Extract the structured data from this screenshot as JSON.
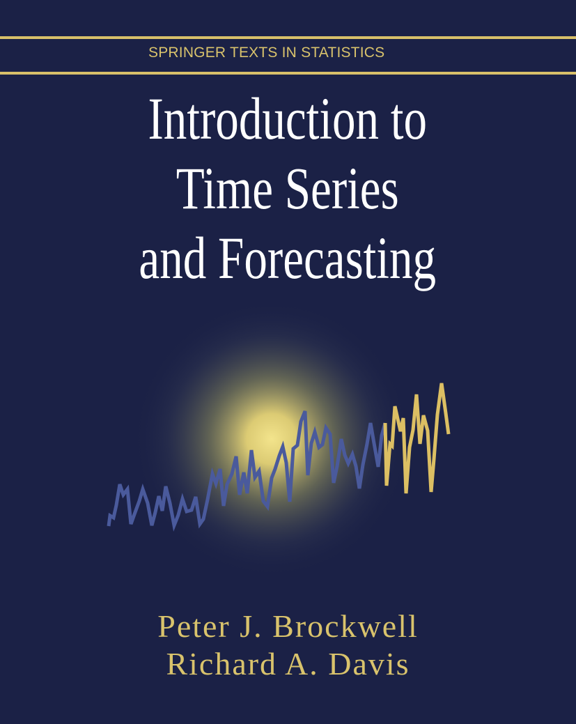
{
  "cover": {
    "series_name": "SPRINGER TEXTS IN STATISTICS",
    "title_lines": [
      "Introduction to",
      "Time Series",
      "and Forecasting"
    ],
    "authors": [
      "Peter J. Brockwell",
      "Richard A. Davis"
    ],
    "illustration": "time-series-line-with-glow"
  },
  "colors": {
    "background": "#1b2146",
    "accent_gold": "#d9c36c",
    "title_white": "#ffffff",
    "series_blue": "#4a5a9c"
  }
}
